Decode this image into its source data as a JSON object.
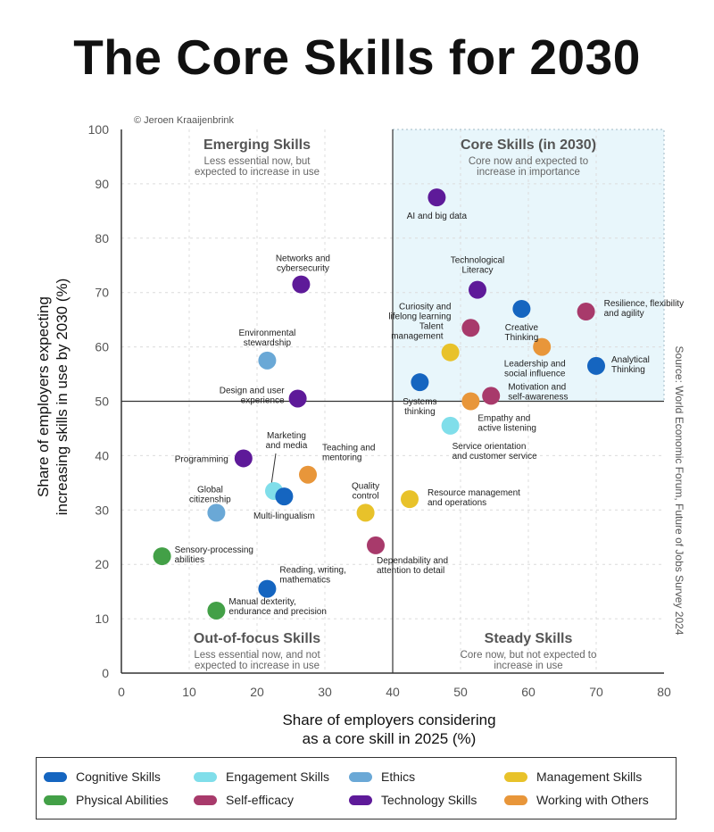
{
  "title": "The Core Skills for 2030",
  "copyright": "© Jeroen Kraaijenbrink",
  "source": "Source: World Economic Forum, Future of Jobs Survey 2024",
  "colors": {
    "Cognitive Skills": "#1565c0",
    "Engagement Skills": "#80deea",
    "Ethics": "#6aa8d6",
    "Management Skills": "#e8c22a",
    "Physical Abilities": "#43a047",
    "Self-efficacy": "#a83a6b",
    "Technology Skills": "#5e1a99",
    "Working with Others": "#e8963a"
  },
  "chart_data": {
    "type": "scatter",
    "title": "The Core Skills for 2030",
    "xlabel": [
      "Share of employers considering",
      "as a core skill in 2025 (%)"
    ],
    "ylabel": [
      "Share of employers expecting",
      "increasing skills in use by 2030 (%)"
    ],
    "xlim": [
      0,
      80
    ],
    "ylim": [
      0,
      100
    ],
    "xticks": [
      0,
      10,
      20,
      30,
      40,
      50,
      60,
      70,
      80
    ],
    "yticks": [
      0,
      10,
      20,
      30,
      40,
      50,
      60,
      70,
      80,
      90,
      100
    ],
    "divider": {
      "x": 40,
      "y": 50
    },
    "grid": true,
    "legend_position": "bottom",
    "quadrants": [
      {
        "id": "emerging",
        "name": "Emerging Skills",
        "desc": [
          "Less essential now, but",
          "expected to increase in use"
        ]
      },
      {
        "id": "core",
        "name": "Core Skills (in 2030)",
        "desc": [
          "Core now and expected to",
          "increase in importance"
        ]
      },
      {
        "id": "outfocus",
        "name": "Out-of-focus Skills",
        "desc": [
          "Less essential now, and not",
          "expected to increase in use"
        ]
      },
      {
        "id": "steady",
        "name": "Steady Skills",
        "desc": [
          "Core now, but not expected to",
          "increase in use"
        ]
      }
    ],
    "categories": [
      "Cognitive Skills",
      "Engagement Skills",
      "Ethics",
      "Management Skills",
      "Physical Abilities",
      "Self-efficacy",
      "Technology Skills",
      "Working with Others"
    ],
    "points": [
      {
        "label": [
          "AI and big data"
        ],
        "category": "Technology Skills",
        "x": 46.5,
        "y": 87.5
      },
      {
        "label": [
          "Networks and",
          "cybersecurity"
        ],
        "category": "Technology Skills",
        "x": 26.5,
        "y": 71.5
      },
      {
        "label": [
          "Technological",
          "Literacy"
        ],
        "category": "Technology Skills",
        "x": 52.5,
        "y": 70.5
      },
      {
        "label": [
          "Creative",
          "Thinking"
        ],
        "category": "Cognitive Skills",
        "x": 59,
        "y": 67
      },
      {
        "label": [
          "Resilience, flexibility",
          "and agility"
        ],
        "category": "Self-efficacy",
        "x": 68.5,
        "y": 66.5
      },
      {
        "label": [
          "Curiosity and",
          "lifelong learning"
        ],
        "category": "Self-efficacy",
        "x": 51.5,
        "y": 63.5
      },
      {
        "label": [
          "Talent",
          "management"
        ],
        "category": "Management Skills",
        "x": 48.5,
        "y": 59
      },
      {
        "label": [
          "Leadership and",
          "social influence"
        ],
        "category": "Working with Others",
        "x": 62,
        "y": 60
      },
      {
        "label": [
          "Analytical",
          "Thinking"
        ],
        "category": "Cognitive Skills",
        "x": 70,
        "y": 56.5
      },
      {
        "label": [
          "Environmental",
          "stewardship"
        ],
        "category": "Ethics",
        "x": 21.5,
        "y": 57.5
      },
      {
        "label": [
          "Systems",
          "thinking"
        ],
        "category": "Cognitive Skills",
        "x": 44,
        "y": 53.5
      },
      {
        "label": [
          "Motivation and",
          "self-awareness"
        ],
        "category": "Self-efficacy",
        "x": 54.5,
        "y": 51
      },
      {
        "label": [
          "Empathy and",
          "active listening"
        ],
        "category": "Working with Others",
        "x": 51.5,
        "y": 50
      },
      {
        "label": [
          "Design and user",
          "experience"
        ],
        "category": "Technology Skills",
        "x": 26,
        "y": 50.5
      },
      {
        "label": [
          "Service orientation",
          "and customer service"
        ],
        "category": "Engagement Skills",
        "x": 48.5,
        "y": 45.5
      },
      {
        "label": [
          "Programming"
        ],
        "category": "Technology Skills",
        "x": 18,
        "y": 39.5
      },
      {
        "label": [
          "Marketing",
          "and media"
        ],
        "category": "Engagement Skills",
        "x": 22.5,
        "y": 33.5
      },
      {
        "label": [
          "Multi-lingualism"
        ],
        "category": "Cognitive Skills",
        "x": 24,
        "y": 32.5
      },
      {
        "label": [
          "Teaching and",
          "mentoring"
        ],
        "category": "Working with Others",
        "x": 27.5,
        "y": 36.5
      },
      {
        "label": [
          "Global",
          "citizenship"
        ],
        "category": "Ethics",
        "x": 14,
        "y": 29.5
      },
      {
        "label": [
          "Quality",
          "control"
        ],
        "category": "Management Skills",
        "x": 36,
        "y": 29.5
      },
      {
        "label": [
          "Resource management",
          "and operations"
        ],
        "category": "Management Skills",
        "x": 42.5,
        "y": 32
      },
      {
        "label": [
          "Dependability and",
          "attention to detail"
        ],
        "category": "Self-efficacy",
        "x": 37.5,
        "y": 23.5
      },
      {
        "label": [
          "Sensory-processing",
          "abilities"
        ],
        "category": "Physical Abilities",
        "x": 6,
        "y": 21.5
      },
      {
        "label": [
          "Reading, writing,",
          "mathematics"
        ],
        "category": "Cognitive Skills",
        "x": 21.5,
        "y": 15.5
      },
      {
        "label": [
          "Manual dexterity,",
          "endurance and precision"
        ],
        "category": "Physical Abilities",
        "x": 14,
        "y": 11.5
      }
    ]
  }
}
